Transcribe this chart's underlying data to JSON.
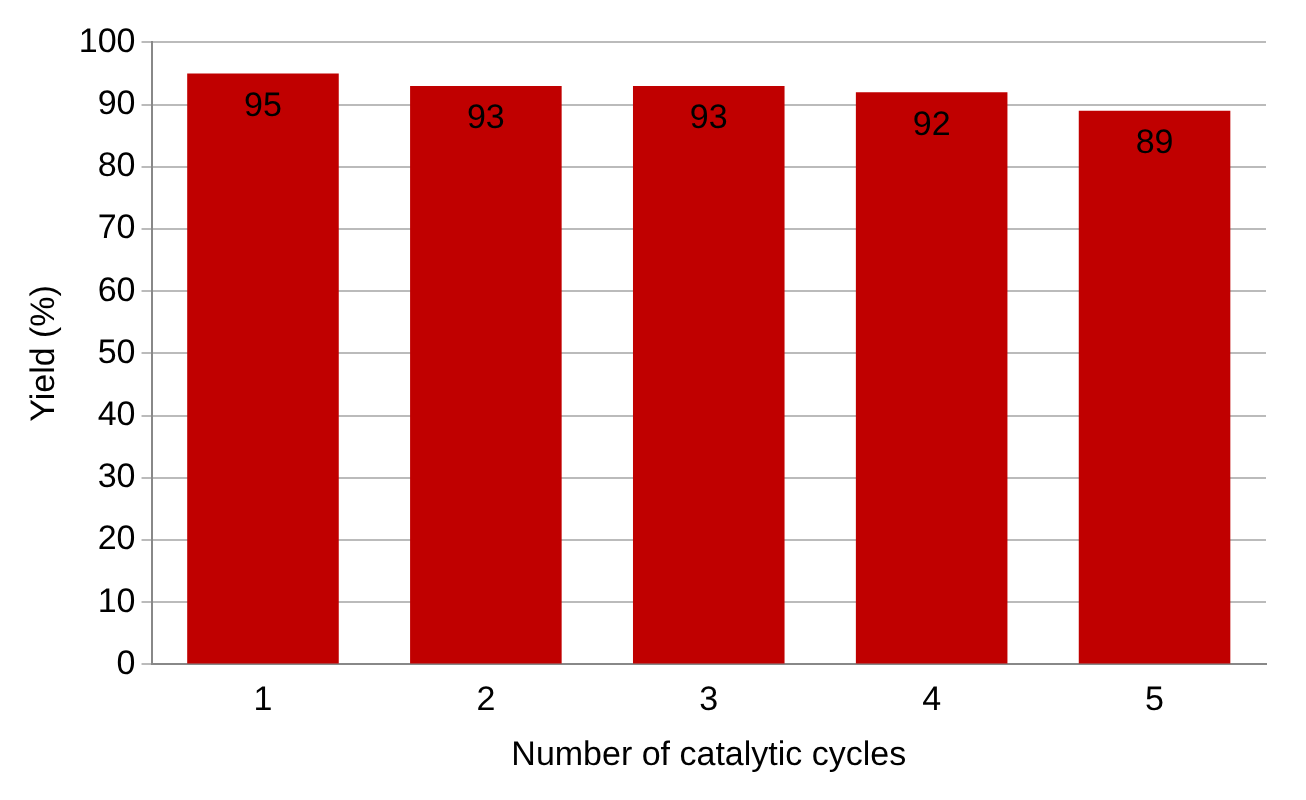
{
  "chart_data": {
    "type": "bar",
    "xlabel": "Number of catalytic cycles",
    "ylabel": "Yield (%)",
    "categories": [
      "1",
      "2",
      "3",
      "4",
      "5"
    ],
    "values": [
      95,
      93,
      93,
      92,
      89
    ],
    "color": "#c00000",
    "ylim": [
      0,
      100
    ],
    "yticks": [
      0,
      10,
      20,
      30,
      40,
      50,
      60,
      70,
      80,
      90,
      100
    ],
    "grid": "y",
    "data_labels": true
  }
}
